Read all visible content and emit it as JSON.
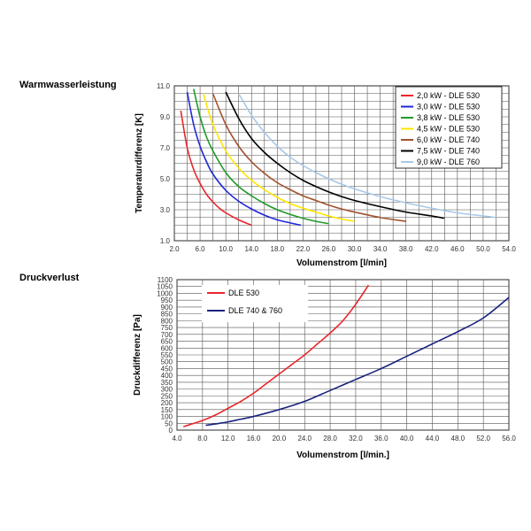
{
  "chart_data": [
    {
      "id": "warmwasser",
      "type": "line",
      "section_title": "Warmwasserleistung",
      "title": "",
      "xlabel": "Volumenstrom [l/min]",
      "ylabel": "Temperaturdifferenz [K]",
      "xlim": [
        2.0,
        54.0
      ],
      "ylim": [
        1.0,
        11.0
      ],
      "x_ticks": [
        "2.0",
        "6.0",
        "10.0",
        "14.0",
        "18.0",
        "22.0",
        "26.0",
        "30.0",
        "34.0",
        "38.0",
        "42.0",
        "46.0",
        "50.0",
        "54.0"
      ],
      "y_ticks": [
        "1.0",
        "3.0",
        "5.0",
        "7.0",
        "9.0",
        "11.0"
      ],
      "grid": true,
      "legend_position": "top-right",
      "series": [
        {
          "name": "2,0 kW - DLE 530",
          "color": "#e8262a",
          "points": [
            [
              3.0,
              9.4
            ],
            [
              4.0,
              7.0
            ],
            [
              5.0,
              5.6
            ],
            [
              6.0,
              4.7
            ],
            [
              7.0,
              4.0
            ],
            [
              8.0,
              3.5
            ],
            [
              9.0,
              3.1
            ],
            [
              10.0,
              2.8
            ],
            [
              12.0,
              2.35
            ],
            [
              14.0,
              2.0
            ]
          ]
        },
        {
          "name": "3,0 kW - DLE 530",
          "color": "#2027d8",
          "points": [
            [
              4.0,
              10.6
            ],
            [
              5.0,
              8.5
            ],
            [
              6.0,
              7.1
            ],
            [
              7.0,
              6.1
            ],
            [
              8.0,
              5.3
            ],
            [
              10.0,
              4.25
            ],
            [
              12.0,
              3.55
            ],
            [
              14.0,
              3.05
            ],
            [
              16.0,
              2.65
            ],
            [
              18.0,
              2.35
            ],
            [
              20.0,
              2.15
            ],
            [
              21.7,
              2.0
            ]
          ]
        },
        {
          "name": "3,8 kW - DLE 530",
          "color": "#1f9a2a",
          "points": [
            [
              5.0,
              10.8
            ],
            [
              6.0,
              9.0
            ],
            [
              7.0,
              7.7
            ],
            [
              8.0,
              6.8
            ],
            [
              10.0,
              5.4
            ],
            [
              12.0,
              4.5
            ],
            [
              14.0,
              3.9
            ],
            [
              16.0,
              3.4
            ],
            [
              18.0,
              3.0
            ],
            [
              20.0,
              2.7
            ],
            [
              22.0,
              2.45
            ],
            [
              24.0,
              2.25
            ],
            [
              26.0,
              2.1
            ]
          ]
        },
        {
          "name": "4,5 kW - DLE 530",
          "color": "#ffe600",
          "points": [
            [
              6.5,
              10.5
            ],
            [
              8.0,
              8.5
            ],
            [
              10.0,
              6.8
            ],
            [
              12.0,
              5.7
            ],
            [
              14.0,
              4.9
            ],
            [
              16.0,
              4.3
            ],
            [
              18.0,
              3.8
            ],
            [
              20.0,
              3.4
            ],
            [
              22.0,
              3.1
            ],
            [
              24.0,
              2.85
            ],
            [
              26.0,
              2.6
            ],
            [
              28.0,
              2.4
            ],
            [
              30.0,
              2.25
            ]
          ]
        },
        {
          "name": "6,0 kW - DLE 740",
          "color": "#a0522d",
          "points": [
            [
              8.0,
              10.5
            ],
            [
              10.0,
              8.5
            ],
            [
              12.0,
              7.1
            ],
            [
              14.0,
              6.1
            ],
            [
              16.0,
              5.35
            ],
            [
              18.0,
              4.75
            ],
            [
              20.0,
              4.3
            ],
            [
              22.0,
              3.9
            ],
            [
              24.0,
              3.6
            ],
            [
              26.0,
              3.3
            ],
            [
              28.0,
              3.05
            ],
            [
              30.0,
              2.85
            ],
            [
              34.0,
              2.5
            ],
            [
              38.0,
              2.25
            ]
          ]
        },
        {
          "name": "7,5 kW - DLE 740",
          "color": "#000000",
          "points": [
            [
              10.0,
              10.6
            ],
            [
              12.0,
              8.9
            ],
            [
              14.0,
              7.6
            ],
            [
              16.0,
              6.7
            ],
            [
              18.0,
              6.0
            ],
            [
              20.0,
              5.4
            ],
            [
              22.0,
              4.9
            ],
            [
              24.0,
              4.5
            ],
            [
              26.0,
              4.15
            ],
            [
              28.0,
              3.85
            ],
            [
              30.0,
              3.6
            ],
            [
              34.0,
              3.2
            ],
            [
              38.0,
              2.85
            ],
            [
              42.0,
              2.6
            ],
            [
              44.0,
              2.45
            ]
          ]
        },
        {
          "name": "9,0 kW - DLE 760",
          "color": "#a8c8e8",
          "points": [
            [
              12.0,
              10.5
            ],
            [
              14.0,
              9.1
            ],
            [
              16.0,
              8.0
            ],
            [
              18.0,
              7.1
            ],
            [
              20.0,
              6.4
            ],
            [
              22.0,
              5.85
            ],
            [
              24.0,
              5.4
            ],
            [
              26.0,
              5.0
            ],
            [
              28.0,
              4.65
            ],
            [
              30.0,
              4.35
            ],
            [
              34.0,
              3.85
            ],
            [
              38.0,
              3.45
            ],
            [
              42.0,
              3.1
            ],
            [
              46.0,
              2.8
            ],
            [
              50.0,
              2.6
            ],
            [
              52.0,
              2.5
            ]
          ]
        }
      ]
    },
    {
      "id": "druckverlust",
      "type": "line",
      "section_title": "Druckverlust",
      "title": "",
      "xlabel": "Volumenstrom [l/min.]",
      "ylabel": "Druckdifferenz [Pa]",
      "xlim": [
        4.0,
        56.0
      ],
      "ylim": [
        0,
        1100
      ],
      "x_ticks": [
        "4.0",
        "8.0",
        "12.0",
        "16.0",
        "20.0",
        "24.0",
        "28.0",
        "32.0",
        "36.0",
        "40.0",
        "44.0",
        "48.0",
        "52.0",
        "56.0"
      ],
      "y_ticks": [
        "0",
        "50",
        "100",
        "150",
        "200",
        "250",
        "300",
        "350",
        "400",
        "450",
        "500",
        "550",
        "600",
        "650",
        "700",
        "750",
        "800",
        "850",
        "900",
        "950",
        "1000",
        "1050",
        "1100"
      ],
      "grid": true,
      "legend_position": "top-left",
      "series": [
        {
          "name": "DLE 530",
          "color": "#e8262a",
          "points": [
            [
              5.0,
              25
            ],
            [
              6.0,
              40
            ],
            [
              8.0,
              70
            ],
            [
              10.0,
              110
            ],
            [
              12.0,
              160
            ],
            [
              14.0,
              210
            ],
            [
              16.0,
              270
            ],
            [
              18.0,
              340
            ],
            [
              20.0,
              410
            ],
            [
              22.0,
              480
            ],
            [
              24.0,
              550
            ],
            [
              26.0,
              630
            ],
            [
              28.0,
              710
            ],
            [
              30.0,
              800
            ],
            [
              32.0,
              920
            ],
            [
              34.0,
              1060
            ]
          ]
        },
        {
          "name": "DLE 740 & 760",
          "color": "#1a237e",
          "points": [
            [
              8.5,
              35
            ],
            [
              10.0,
              45
            ],
            [
              12.0,
              60
            ],
            [
              14.0,
              80
            ],
            [
              16.0,
              100
            ],
            [
              20.0,
              150
            ],
            [
              24.0,
              210
            ],
            [
              28.0,
              290
            ],
            [
              32.0,
              370
            ],
            [
              36.0,
              450
            ],
            [
              40.0,
              540
            ],
            [
              44.0,
              630
            ],
            [
              48.0,
              720
            ],
            [
              52.0,
              820
            ],
            [
              56.0,
              970
            ]
          ]
        }
      ]
    }
  ]
}
